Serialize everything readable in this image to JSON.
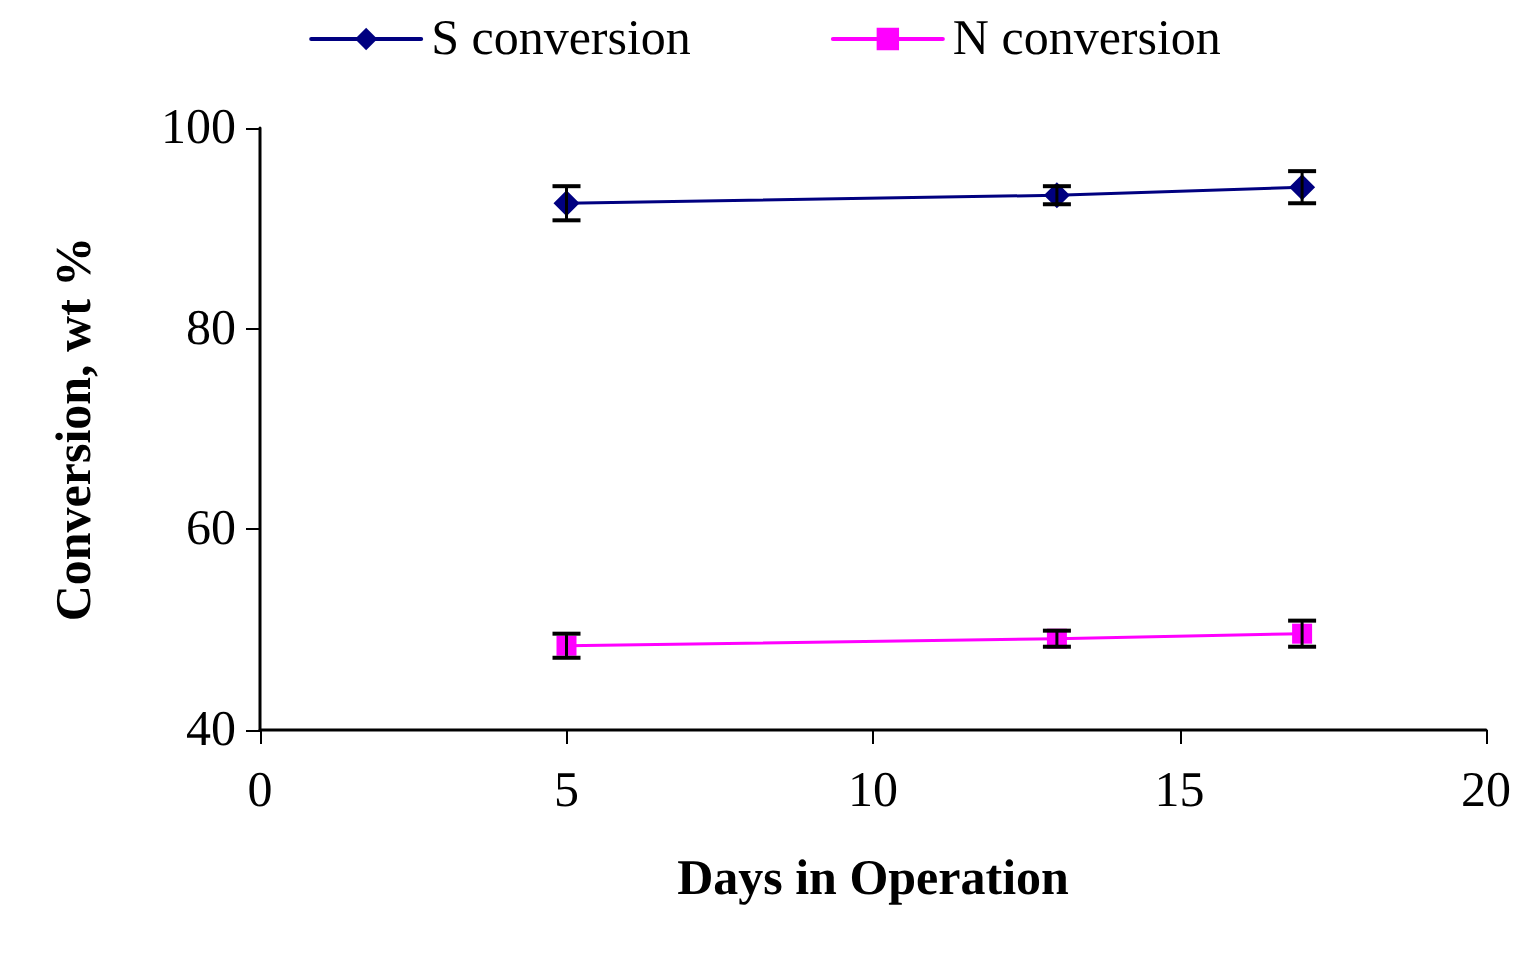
{
  "chart_data": {
    "type": "line",
    "xlabel": "Days in Operation",
    "ylabel": "Conversion, wt %",
    "x": [
      5,
      13,
      17
    ],
    "series": [
      {
        "name": "S conversion",
        "color": "#000080",
        "marker": "diamond",
        "values": [
          92.5,
          93.3,
          94.1
        ],
        "errors": [
          1.7,
          0.9,
          1.6
        ]
      },
      {
        "name": "N conversion",
        "color": "#ff00ff",
        "marker": "square",
        "values": [
          48.4,
          49.1,
          49.6
        ],
        "errors": [
          1.2,
          0.8,
          1.3
        ]
      }
    ],
    "xlim": [
      0,
      20
    ],
    "xticks": [
      0,
      5,
      10,
      15,
      20
    ],
    "ylim": [
      40,
      100
    ],
    "yticks": [
      40,
      60,
      80,
      100
    ],
    "grid": false,
    "legend": "top",
    "line_style": "solid"
  }
}
